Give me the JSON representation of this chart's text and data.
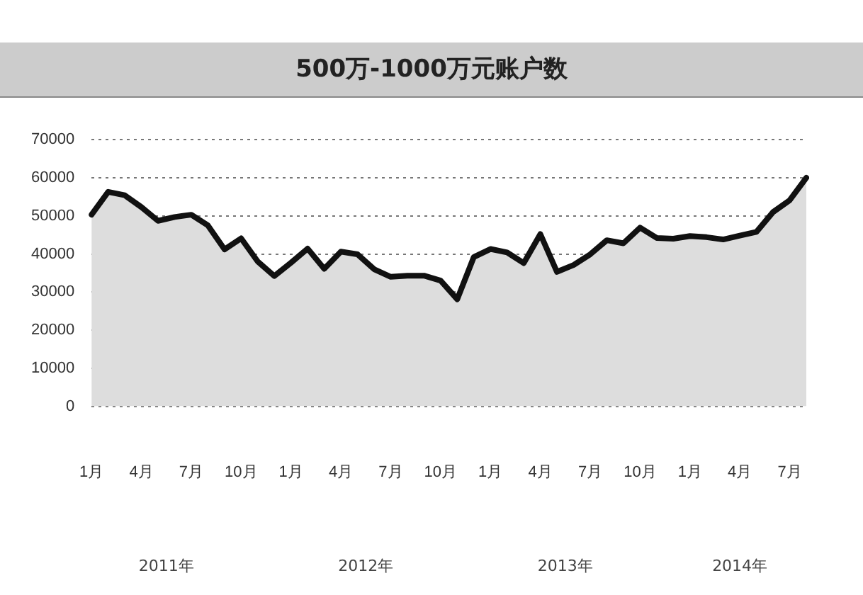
{
  "chart_data": {
    "type": "area",
    "title": "500万-1000万元账户数",
    "categories": [
      "1月",
      null,
      null,
      "4月",
      null,
      null,
      "7月",
      null,
      null,
      "10月",
      null,
      null,
      "1月",
      null,
      null,
      "4月",
      null,
      null,
      "7月",
      null,
      null,
      "10月",
      null,
      null,
      "1月",
      null,
      null,
      "4月",
      null,
      null,
      "7月",
      null,
      null,
      "10月",
      null,
      null,
      "1月",
      null,
      null,
      "4月",
      null,
      null,
      "7月",
      null
    ],
    "series": [
      {
        "color": "#111111",
        "values": [
          50300,
          56300,
          55400,
          52300,
          48700,
          49700,
          50300,
          47500,
          41200,
          44100,
          38000,
          34200,
          37700,
          41400,
          36100,
          40600,
          39900,
          36000,
          34000,
          34300,
          34300,
          33000,
          28100,
          39200,
          41300,
          40400,
          37600,
          45200,
          35300,
          37100,
          39900,
          43600,
          42800,
          46900,
          44200,
          44000,
          44700,
          44400,
          43800,
          44800,
          45800,
          51000,
          54100,
          60000
        ]
      }
    ],
    "ylim": [
      0,
      70000
    ],
    "yticks": [
      0,
      10000,
      20000,
      30000,
      40000,
      50000,
      60000,
      70000
    ],
    "grid": "y",
    "legend": false,
    "marker": "none",
    "line_style": "solid",
    "annotations": [
      "2011年",
      "2012年",
      "2013年",
      "2014年"
    ]
  }
}
